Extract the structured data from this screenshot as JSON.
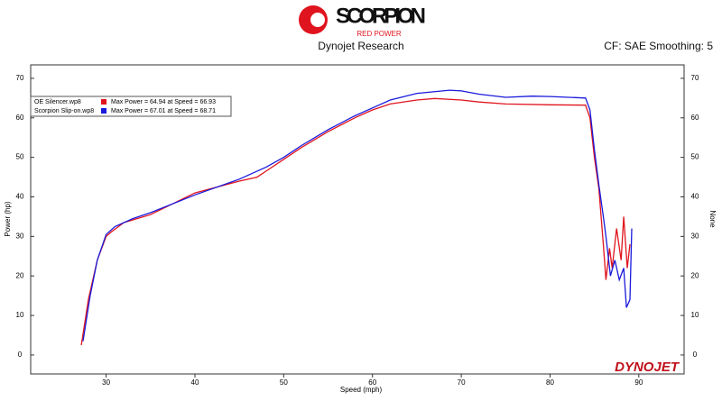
{
  "chart_data": {
    "type": "line",
    "logo": "SCORPION",
    "logo_tagline": "RED POWER",
    "title": "Dynojet Research",
    "corner_note": "CF: SAE Smoothing: 5",
    "watermark": "DYNOJET",
    "x_label": "Speed (mph)",
    "y_label": "Power (hp)",
    "y2_label": "None",
    "xlim": [
      21.5,
      95.1
    ],
    "ylim": [
      -4.8,
      73.4
    ],
    "y2lim": [
      -4.8,
      73.4
    ],
    "xticks": [
      30,
      40,
      50,
      60,
      70,
      80,
      90
    ],
    "yticks": [
      0,
      10,
      20,
      30,
      40,
      50,
      60,
      70
    ],
    "y2ticks": [
      0,
      10,
      20,
      30,
      40,
      50,
      60,
      70
    ],
    "series": [
      {
        "name": "OE Silencer.wp8",
        "color": "#e0141e",
        "max_label": "Max Power = 64.94 at Speed = 66.93",
        "x": [
          27.2,
          28,
          29,
          30,
          30.5,
          32,
          35,
          40,
          45,
          47,
          48,
          50,
          52,
          55,
          58,
          60,
          62,
          65,
          67,
          70,
          72,
          75,
          80,
          84,
          84.5,
          85,
          85.5,
          86,
          86.3,
          86.7,
          87,
          87.5,
          88,
          88.3,
          88.7,
          89
        ],
        "values": [
          2.5,
          14,
          24,
          30,
          31,
          33.5,
          35.5,
          41,
          44,
          45,
          46.5,
          49.5,
          52.5,
          56.5,
          60,
          62,
          63.5,
          64.5,
          64.9,
          64.5,
          64,
          63.5,
          63.3,
          63.2,
          60,
          50,
          42,
          28,
          19,
          27,
          22,
          32,
          24,
          35,
          22,
          28
        ]
      },
      {
        "name": "Scorpion Slip-on.wp8",
        "color": "#1a1adc",
        "max_label": "Max Power = 67.01 at Speed = 68.71",
        "x": [
          27.4,
          28.2,
          29,
          30,
          31,
          33,
          35,
          40,
          45,
          48,
          50,
          52,
          55,
          58,
          60,
          62,
          65,
          68.7,
          70,
          72,
          75,
          78,
          80,
          84,
          84.5,
          85,
          85.5,
          86,
          86.3,
          86.8,
          87.3,
          87.8,
          88.3,
          88.6,
          89,
          89.2
        ],
        "values": [
          3.5,
          15,
          24,
          30.5,
          32.5,
          34.5,
          36,
          40.5,
          44.5,
          47.5,
          50,
          53,
          57,
          60.5,
          62.5,
          64.5,
          66.2,
          67,
          66.8,
          66,
          65.2,
          65.5,
          65.4,
          65,
          62,
          52,
          43,
          35,
          30,
          20,
          24,
          19,
          22,
          12,
          14,
          32
        ]
      }
    ]
  }
}
